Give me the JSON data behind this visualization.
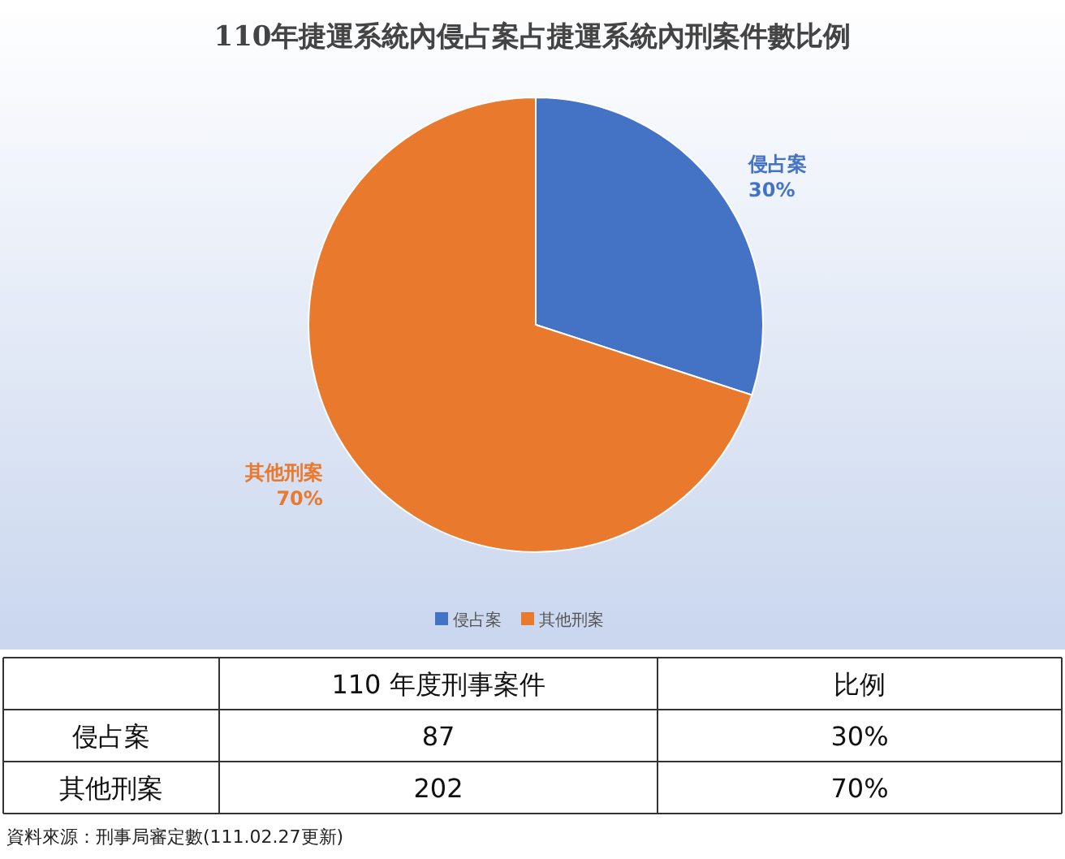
{
  "chart_data": {
    "type": "pie",
    "title": "110年捷運系統內侵占案占捷運系統內刑案件數比例",
    "categories": [
      "侵占案",
      "其他刑案"
    ],
    "values": [
      30,
      70
    ],
    "value_labels": [
      "30%",
      "70%"
    ],
    "colors": [
      "#4472c4",
      "#e8792d"
    ],
    "legend": "bottom",
    "annotations": [
      "110 年度刑事案件",
      "比例",
      "87",
      "202",
      "資料來源：刑事局審定數(111.02.27更新)"
    ]
  }
}
